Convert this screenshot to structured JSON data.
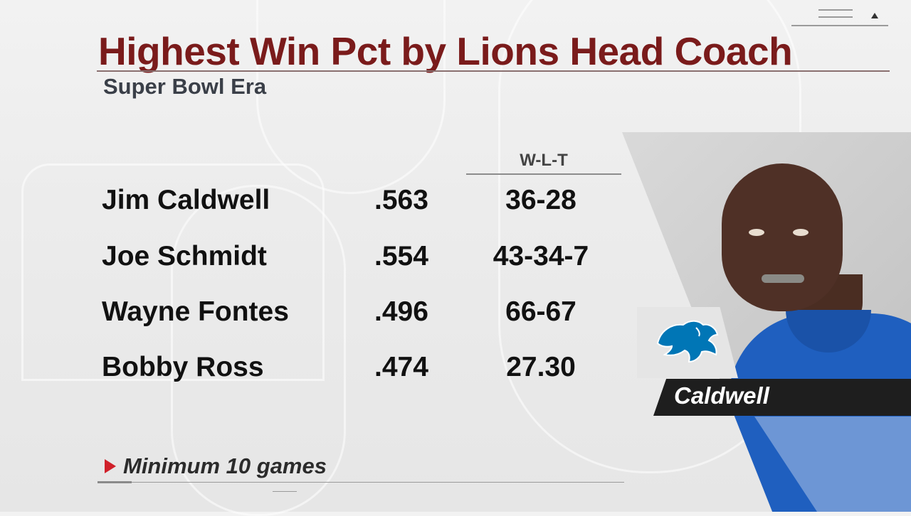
{
  "title": "Highest Win Pct by Lions Head Coach",
  "subtitle": "Super Bowl Era",
  "column_header": "W-L-T",
  "rows": [
    {
      "name": "Jim Caldwell",
      "pct": ".563",
      "wlt": "36-28"
    },
    {
      "name": "Joe Schmidt",
      "pct": ".554",
      "wlt": "43-34-7"
    },
    {
      "name": "Wayne Fontes",
      "pct": ".496",
      "wlt": "66-67"
    },
    {
      "name": "Bobby Ross",
      "pct": ".474",
      "wlt": "27.30"
    }
  ],
  "footnote": "Minimum 10 games",
  "photo": {
    "caption": "Caldwell",
    "logo_icon": "detroit-lions-logo-icon"
  },
  "colors": {
    "title": "#7a1b1b",
    "accent_red": "#d0202a",
    "lions_blue": "#0076b6",
    "shirt_blue": "#1f5fbf"
  }
}
